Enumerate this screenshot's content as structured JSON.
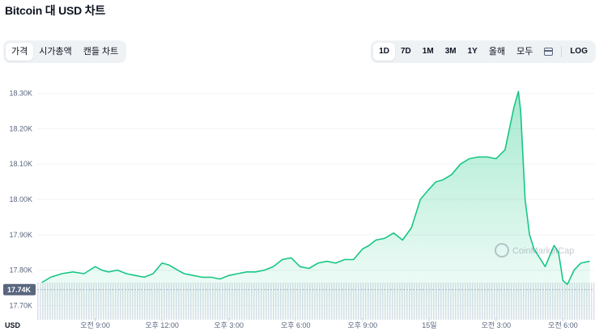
{
  "page": {
    "title": "Bitcoin 대 USD 차트"
  },
  "view_tabs": [
    {
      "label": "가격",
      "active": true
    },
    {
      "label": "시가총액",
      "active": false
    },
    {
      "label": "캔들 차트",
      "active": false
    }
  ],
  "range_buttons": [
    {
      "label": "1D",
      "active": true
    },
    {
      "label": "7D",
      "active": false
    },
    {
      "label": "1M",
      "active": false
    },
    {
      "label": "3M",
      "active": false
    },
    {
      "label": "1Y",
      "active": false
    },
    {
      "label": "올해",
      "active": false
    },
    {
      "label": "모두",
      "active": false
    }
  ],
  "log_label": "LOG",
  "icons": {
    "calendar": "calendar-icon",
    "watermark": "coinmarketcap-logo"
  },
  "watermark_text": "CoinMarketCap",
  "colors": {
    "line": "#16c784",
    "area_top": "#16c784",
    "current_badge": "#58667e"
  },
  "chart_data": {
    "type": "area",
    "currency_label": "USD",
    "ylim": [
      17.66,
      18.34
    ],
    "y_ticks": [
      "18.30K",
      "18.20K",
      "18.10K",
      "18.00K",
      "17.90K",
      "17.80K",
      "17.70K"
    ],
    "y_tick_values": [
      18.3,
      18.2,
      18.1,
      18.0,
      17.9,
      17.8,
      17.7
    ],
    "current_value_label": "17.74K",
    "current_value": 17.745,
    "x_ticks": [
      "오전 9:00",
      "오후 12:00",
      "오후 3:00",
      "오후 6:00",
      "오후 9:00",
      "15일",
      "오전 3:00",
      "오전 6:00"
    ],
    "x_tick_hours": [
      9,
      12,
      15,
      18,
      21,
      24,
      27,
      30
    ],
    "series": [
      {
        "x_hours": [
          6.6,
          7.0,
          7.5,
          8.0,
          8.5,
          9.0,
          9.3,
          9.6,
          10.0,
          10.4,
          10.8,
          11.2,
          11.6,
          12.0,
          12.3,
          12.7,
          13.0,
          13.4,
          13.8,
          14.2,
          14.6,
          15.0,
          15.4,
          15.8,
          16.2,
          16.6,
          17.0,
          17.4,
          17.8,
          18.2,
          18.6,
          19.0,
          19.4,
          19.8,
          20.2,
          20.6,
          21.0,
          21.3,
          21.6,
          22.0,
          22.4,
          22.8,
          23.2,
          23.6,
          24.0,
          24.3,
          24.6,
          25.0,
          25.4,
          25.8,
          26.2,
          26.6,
          27.0,
          27.4,
          27.8,
          28.0,
          28.1,
          28.3,
          28.5,
          28.7,
          29.0,
          29.2,
          29.4,
          29.6,
          29.8,
          30.0,
          30.2,
          30.5,
          30.8,
          31.2
        ],
        "values": [
          17.765,
          17.78,
          17.79,
          17.795,
          17.79,
          17.81,
          17.8,
          17.795,
          17.8,
          17.79,
          17.785,
          17.78,
          17.79,
          17.82,
          17.815,
          17.8,
          17.79,
          17.785,
          17.78,
          17.78,
          17.775,
          17.785,
          17.79,
          17.795,
          17.795,
          17.8,
          17.81,
          17.83,
          17.835,
          17.81,
          17.805,
          17.82,
          17.825,
          17.82,
          17.83,
          17.83,
          17.86,
          17.87,
          17.885,
          17.89,
          17.905,
          17.885,
          17.92,
          18.0,
          18.03,
          18.05,
          18.055,
          18.07,
          18.1,
          18.115,
          18.12,
          18.12,
          18.115,
          18.14,
          18.26,
          18.305,
          18.25,
          18.0,
          17.9,
          17.86,
          17.83,
          17.81,
          17.84,
          17.87,
          17.85,
          17.77,
          17.76,
          17.8,
          17.82,
          17.825
        ],
        "color": "#16c784"
      }
    ],
    "legend": "none",
    "grid": true
  }
}
